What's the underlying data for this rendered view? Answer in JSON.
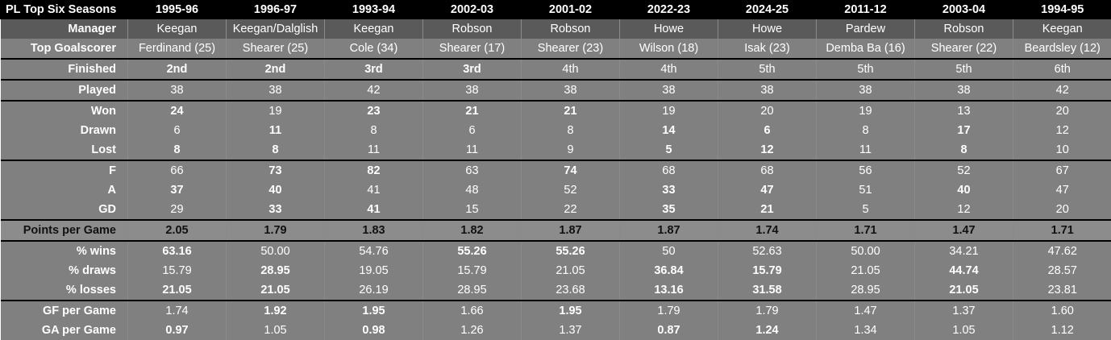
{
  "header": {
    "title": "PL Top Six Seasons",
    "seasons": [
      "1995-96",
      "1996-97",
      "1993-94",
      "2002-03",
      "2001-02",
      "2022-23",
      "2024-25",
      "2011-12",
      "2003-04",
      "1994-95"
    ]
  },
  "rows": [
    {
      "label": "Manager",
      "style": "dark",
      "values": [
        "Keegan",
        "Keegan/Dalglish",
        "Keegan",
        "Robson",
        "Robson",
        "Howe",
        "Howe",
        "Pardew",
        "Robson",
        "Keegan"
      ],
      "bold": []
    },
    {
      "label": "Top Goalscorer",
      "style": "gray",
      "values": [
        "Ferdinand (25)",
        "Shearer (25)",
        "Cole (34)",
        "Shearer (17)",
        "Shearer (23)",
        "Wilson (18)",
        "Isak (23)",
        "Demba Ba (16)",
        "Shearer (22)",
        "Beardsley (12)"
      ],
      "bold": []
    },
    {
      "label": "Finished",
      "style": "gray",
      "sep": true,
      "values": [
        "2nd",
        "2nd",
        "3rd",
        "3rd",
        "4th",
        "4th",
        "5th",
        "5th",
        "5th",
        "6th"
      ],
      "bold": [
        0,
        1,
        2,
        3
      ]
    },
    {
      "label": "Played",
      "style": "gray",
      "sep": true,
      "values": [
        "38",
        "38",
        "42",
        "38",
        "38",
        "38",
        "38",
        "38",
        "38",
        "42"
      ],
      "bold": []
    },
    {
      "label": "Won",
      "style": "gray",
      "sep": true,
      "values": [
        "24",
        "19",
        "23",
        "21",
        "21",
        "19",
        "20",
        "19",
        "13",
        "20"
      ],
      "bold": [
        0,
        2,
        3,
        4
      ]
    },
    {
      "label": "Drawn",
      "style": "gray",
      "values": [
        "6",
        "11",
        "8",
        "6",
        "8",
        "14",
        "6",
        "8",
        "17",
        "12"
      ],
      "bold": [
        1,
        5,
        6,
        8
      ]
    },
    {
      "label": "Lost",
      "style": "gray",
      "values": [
        "8",
        "8",
        "11",
        "11",
        "9",
        "5",
        "12",
        "11",
        "8",
        "10"
      ],
      "bold": [
        0,
        1,
        5,
        6,
        8
      ]
    },
    {
      "label": "F",
      "style": "gray",
      "sep": true,
      "values": [
        "66",
        "73",
        "82",
        "63",
        "74",
        "68",
        "68",
        "56",
        "52",
        "67"
      ],
      "bold": [
        1,
        2,
        4
      ]
    },
    {
      "label": "A",
      "style": "gray",
      "values": [
        "37",
        "40",
        "41",
        "48",
        "52",
        "33",
        "47",
        "51",
        "40",
        "47"
      ],
      "bold": [
        0,
        1,
        5,
        6,
        8
      ]
    },
    {
      "label": "GD",
      "style": "gray",
      "values": [
        "29",
        "33",
        "41",
        "15",
        "22",
        "35",
        "21",
        "5",
        "12",
        "20"
      ],
      "bold": [
        1,
        2,
        5,
        6
      ]
    },
    {
      "label": "Points per Game",
      "style": "ppg",
      "sep": true,
      "values": [
        "2.05",
        "1.79",
        "1.83",
        "1.82",
        "1.87",
        "1.87",
        "1.74",
        "1.71",
        "1.47",
        "1.71"
      ],
      "bold": []
    },
    {
      "label": "% wins",
      "style": "gray",
      "sep": true,
      "values": [
        "63.16",
        "50.00",
        "54.76",
        "55.26",
        "55.26",
        "50",
        "52.63",
        "50.00",
        "34.21",
        "47.62"
      ],
      "bold": [
        0,
        3,
        4
      ]
    },
    {
      "label": "% draws",
      "style": "gray",
      "values": [
        "15.79",
        "28.95",
        "19.05",
        "15.79",
        "21.05",
        "36.84",
        "15.79",
        "21.05",
        "44.74",
        "28.57"
      ],
      "bold": [
        1,
        5,
        6,
        8
      ]
    },
    {
      "label": "% losses",
      "style": "gray",
      "values": [
        "21.05",
        "21.05",
        "26.19",
        "28.95",
        "23.68",
        "13.16",
        "31.58",
        "28.95",
        "21.05",
        "23.81"
      ],
      "bold": [
        0,
        1,
        5,
        6,
        8
      ]
    },
    {
      "label": "GF per Game",
      "style": "gray",
      "sep": true,
      "values": [
        "1.74",
        "1.92",
        "1.95",
        "1.66",
        "1.95",
        "1.79",
        "1.79",
        "1.47",
        "1.37",
        "1.60"
      ],
      "bold": [
        1,
        2,
        4
      ]
    },
    {
      "label": "GA per Game",
      "style": "gray",
      "values": [
        "0.97",
        "1.05",
        "0.98",
        "1.26",
        "1.37",
        "0.87",
        "1.24",
        "1.34",
        "1.05",
        "1.12"
      ],
      "bold": [
        0,
        2,
        5,
        6
      ]
    }
  ]
}
